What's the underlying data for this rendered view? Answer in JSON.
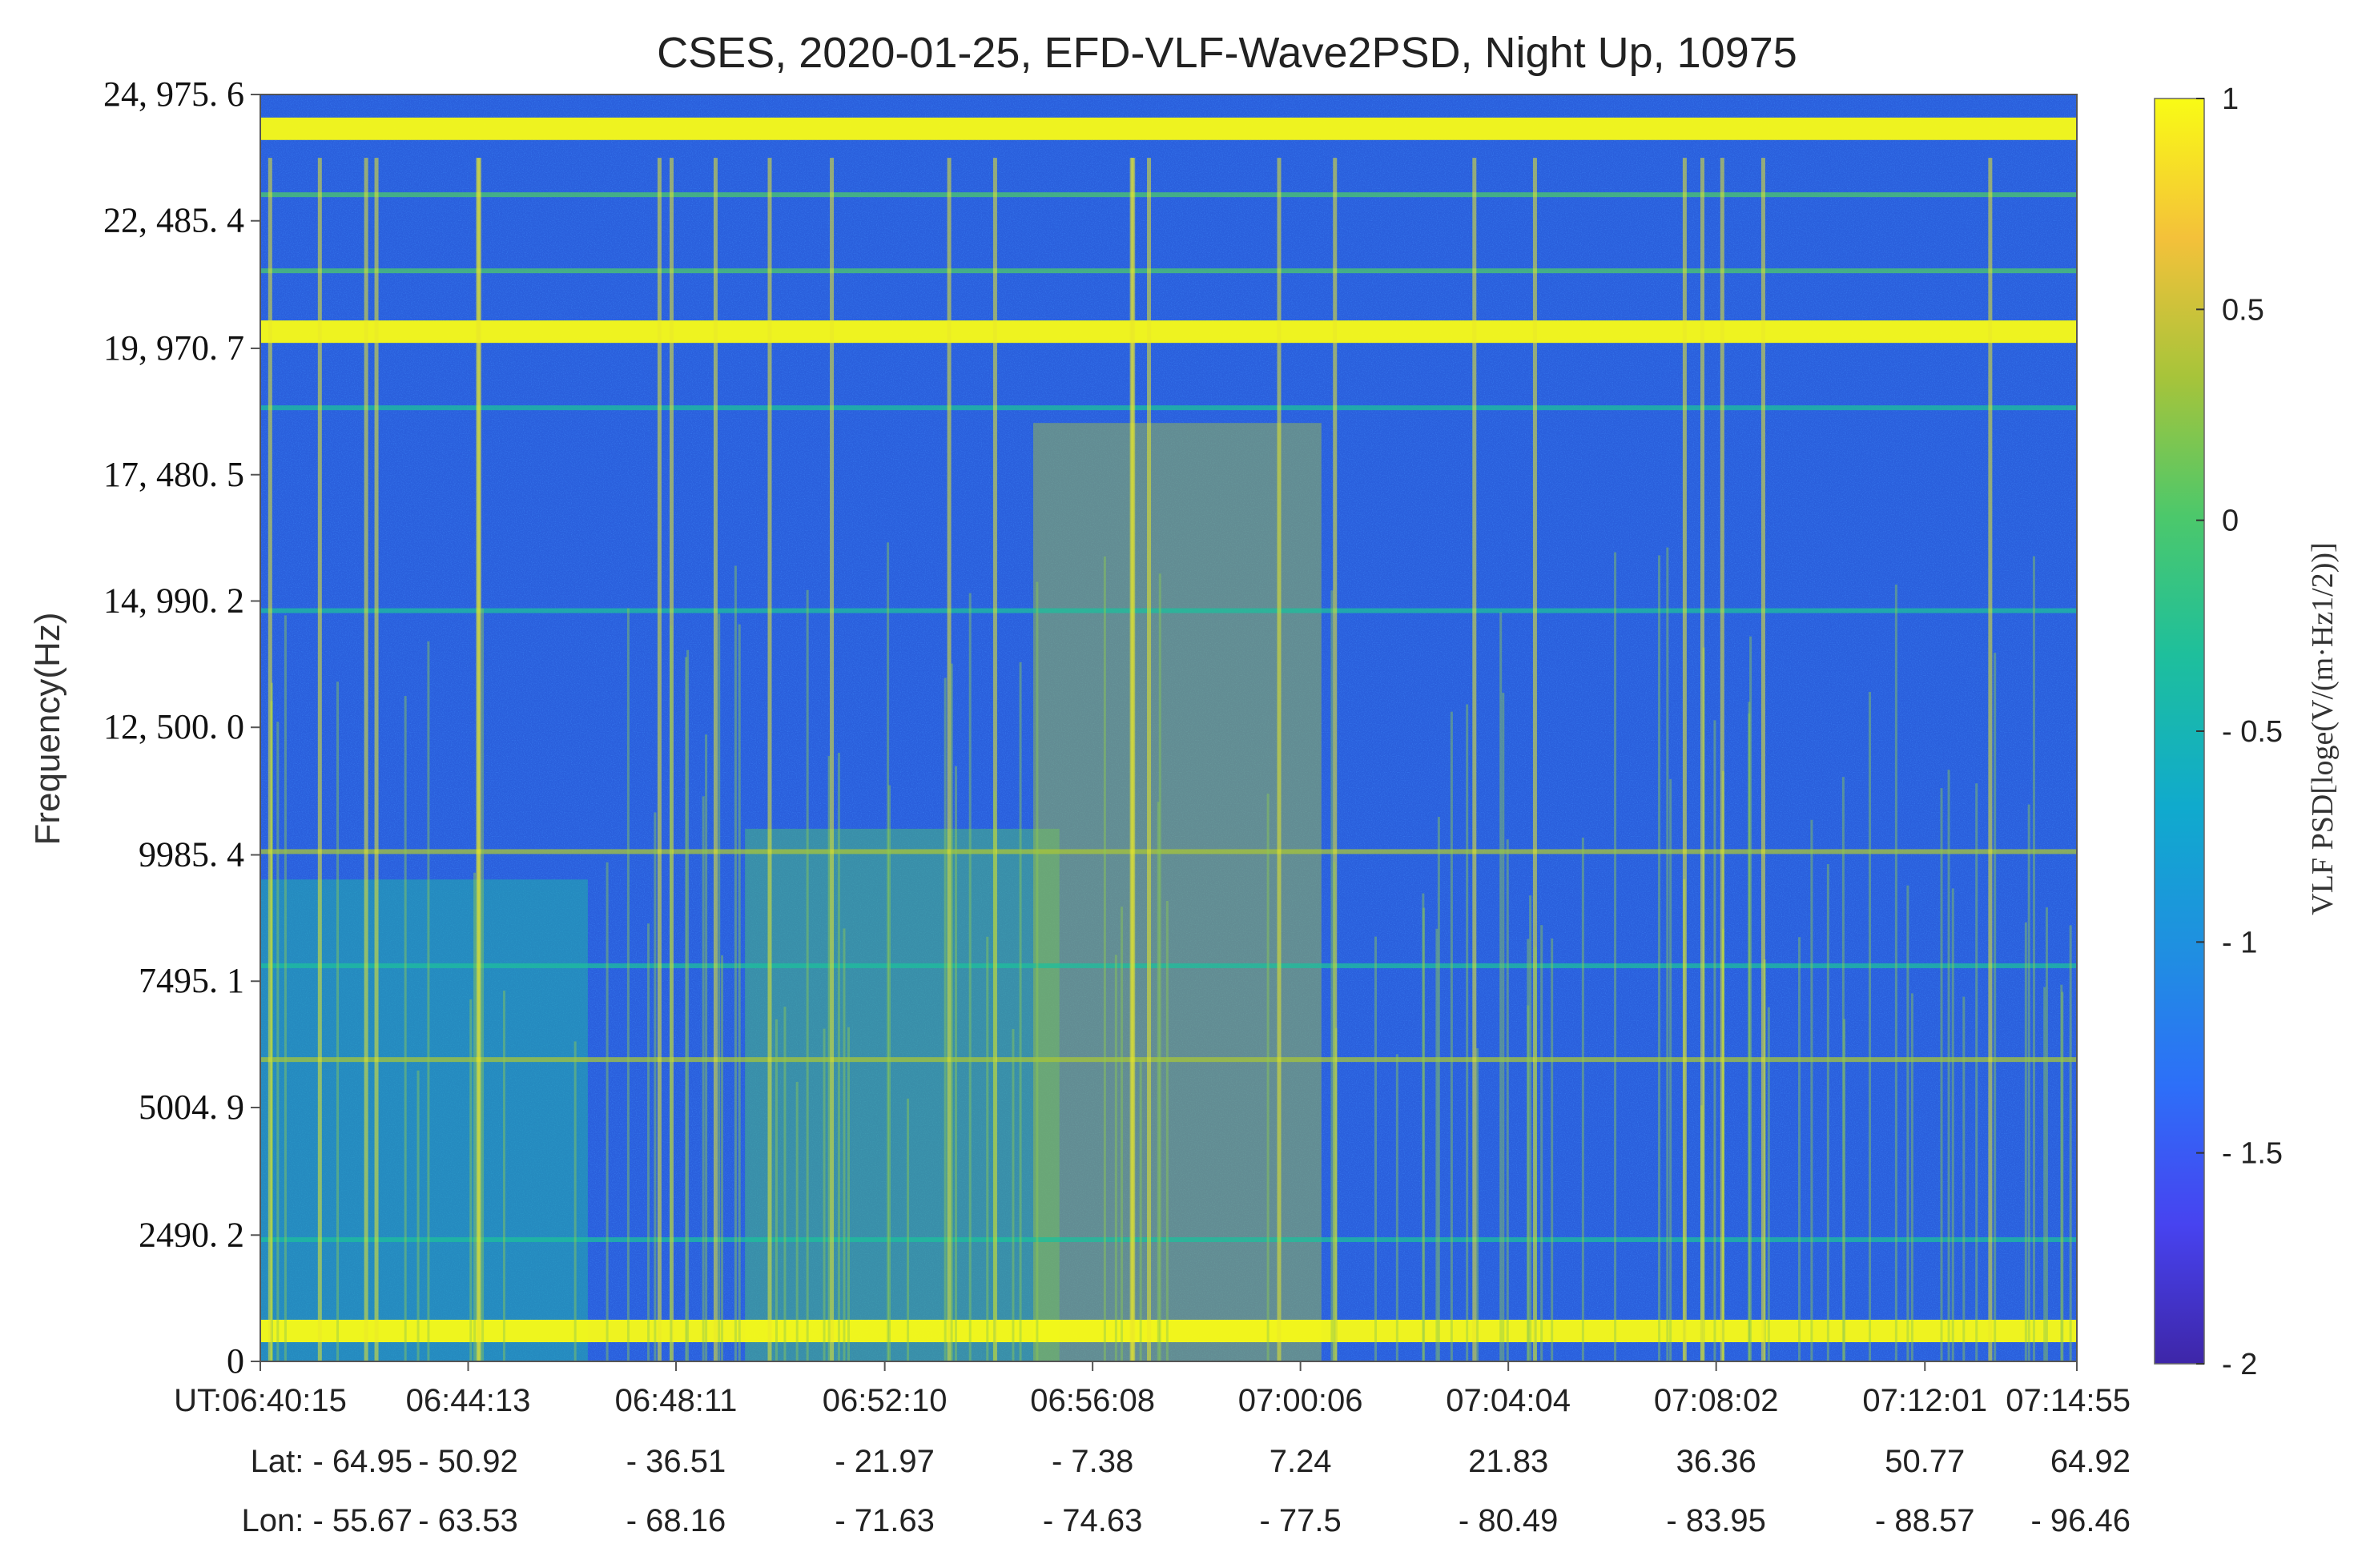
{
  "chart_data": {
    "type": "heatmap",
    "title": "CSES, 2020-01-25, EFD-VLF-Wave2PSD, Night Up, 10975",
    "ylabel": "Frequency(Hz)",
    "ylim": [
      0,
      24975.6
    ],
    "y_ticks": [
      "0",
      "2490. 2",
      "5004. 9",
      "7495. 1",
      "9985. 4",
      "12, 500. 0",
      "14, 990. 2",
      "17, 480. 5",
      "19, 970. 7",
      "22, 485. 4",
      "24, 975. 6"
    ],
    "y_tick_values": [
      0,
      2490.2,
      5004.9,
      7495.1,
      9985.4,
      12500.0,
      14990.2,
      17480.5,
      19970.7,
      22485.4,
      24975.6
    ],
    "x_rows": [
      {
        "labels": [
          "UT:06:40:15",
          "06:44:13",
          "06:48:11",
          "06:52:10",
          "06:56:08",
          "07:00:06",
          "07:04:04",
          "07:08:02",
          "07:12:01",
          "07:14:55"
        ]
      },
      {
        "labels": [
          "Lat: - 64.95",
          "- 50.92",
          "- 36.51",
          "- 21.97",
          "- 7.38",
          "7.24",
          "21.83",
          "36.36",
          "50.77",
          "64.92"
        ]
      },
      {
        "labels": [
          "Lon: - 55.67",
          "- 63.53",
          "- 68.16",
          "- 71.63",
          "- 74.63",
          "- 77.5",
          "- 80.49",
          "- 83.95",
          "- 88.57",
          "- 96.46"
        ]
      }
    ],
    "x_tick_times": [
      "06:40:15",
      "06:44:13",
      "06:48:11",
      "06:52:10",
      "06:56:08",
      "07:00:06",
      "07:04:04",
      "07:08:02",
      "07:12:01",
      "07:14:55"
    ],
    "colorbar": {
      "label": "VLF PSD[loge(V/(m·Hz1/2))]",
      "range": [
        -2,
        1
      ],
      "ticks": [
        "1",
        "0.5",
        "0",
        "- 0.5",
        "- 1",
        "- 1.5",
        "- 2"
      ],
      "tick_values": [
        1,
        0.5,
        0,
        -0.5,
        -1,
        -1.5,
        -2
      ],
      "colormap": [
        "#3e26a8",
        "#4743f0",
        "#2d6ff8",
        "#1f90e0",
        "#10aacd",
        "#1ebf9c",
        "#4cc86b",
        "#a7c43a",
        "#f4c13a",
        "#f9fb15"
      ]
    },
    "background_level": -1.3,
    "horizontal_bands": [
      {
        "frequency": 20300,
        "level": 1.0
      },
      {
        "frequency": 24300,
        "level": 0.85
      },
      {
        "frequency": 23000,
        "level": 0.1
      },
      {
        "frequency": 21500,
        "level": 0.0
      },
      {
        "frequency": 18800,
        "level": -0.3
      },
      {
        "frequency": 14800,
        "level": -0.3
      },
      {
        "frequency": 10050,
        "level": 0.2
      },
      {
        "frequency": 7800,
        "level": -0.3
      },
      {
        "frequency": 5950,
        "level": 0.3
      },
      {
        "frequency": 2400,
        "level": -0.3
      },
      {
        "frequency": 600,
        "level": 0.9
      }
    ],
    "emission_regions": [
      {
        "time_start": "06:40:15",
        "time_end": "06:46:30",
        "freq_max": 9500,
        "level": -0.2
      },
      {
        "time_start": "06:49:30",
        "time_end": "06:55:30",
        "freq_max": 10500,
        "level": 0.0
      },
      {
        "time_start": "06:55:00",
        "time_end": "07:00:30",
        "freq_max": 18500,
        "level": 0.3
      }
    ]
  }
}
